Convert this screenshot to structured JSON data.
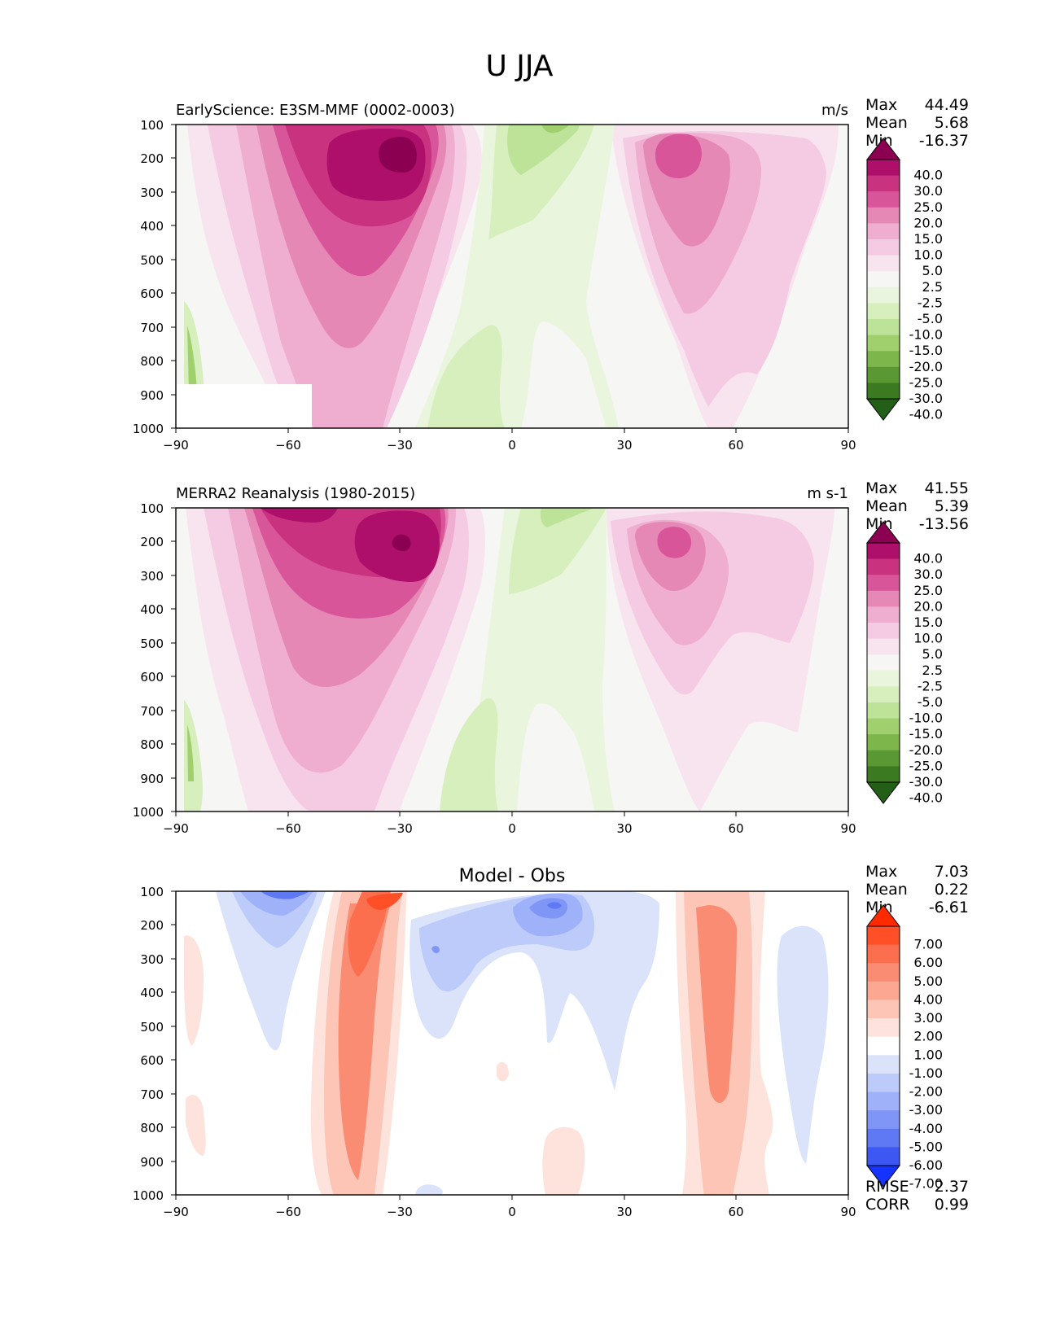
{
  "figure": {
    "title": "U JJA"
  },
  "chart_data": [
    {
      "type": "contour",
      "title": "EarlyScience: E3SM-MMF (0002-0003)",
      "units": "m/s",
      "xlabel": "",
      "ylabel": "",
      "xlim": [
        -90,
        90
      ],
      "ylim": [
        1000,
        100
      ],
      "y_inverted": true,
      "x_ticks": [
        "−90",
        "−60",
        "−30",
        "0",
        "30",
        "60",
        "90"
      ],
      "y_ticks": [
        "100",
        "200",
        "300",
        "400",
        "500",
        "600",
        "700",
        "800",
        "900",
        "1000"
      ],
      "stats": {
        "max_label": "Max",
        "max": "44.49",
        "mean_label": "Mean",
        "mean": "5.68",
        "min_label": "Min",
        "min": "-16.37"
      },
      "colorbar": {
        "levels": [
          "40.0",
          "30.0",
          "25.0",
          "20.0",
          "15.0",
          "10.0",
          "5.0",
          "2.5",
          "-2.5",
          "-5.0",
          "-10.0",
          "-15.0",
          "-20.0",
          "-25.0",
          "-30.0",
          "-40.0"
        ],
        "colors": [
          "#8c0051",
          "#ad0f6a",
          "#c9327f",
          "#d9559a",
          "#e688b5",
          "#efadd0",
          "#f5cbe3",
          "#f8e4ef",
          "#f6f6f4",
          "#e9f5dc",
          "#d6efbd",
          "#bde399",
          "#9fd06d",
          "#7db64b",
          "#5a9834",
          "#3c7a22",
          "#245f18"
        ]
      },
      "features": [
        {
          "name": "southern-hemisphere-westerly-jet",
          "peak_lat": -32,
          "peak_lev": 200,
          "peak_value": 44.49
        },
        {
          "name": "northern-hemisphere-westerly-jet",
          "peak_lat": 45,
          "peak_lev": 200,
          "peak_value": 28
        },
        {
          "name": "tropical-easterlies",
          "lat_range": [
            -5,
            15
          ],
          "lev_range": [
            100,
            450
          ],
          "value": -12
        }
      ]
    },
    {
      "type": "contour",
      "title": "MERRA2 Reanalysis (1980-2015)",
      "units": "m s-1",
      "xlabel": "",
      "ylabel": "",
      "xlim": [
        -90,
        90
      ],
      "ylim": [
        1000,
        100
      ],
      "y_inverted": true,
      "x_ticks": [
        "−90",
        "−60",
        "−30",
        "0",
        "30",
        "60",
        "90"
      ],
      "y_ticks": [
        "100",
        "200",
        "300",
        "400",
        "500",
        "600",
        "700",
        "800",
        "900",
        "1000"
      ],
      "stats": {
        "max_label": "Max",
        "max": "41.55",
        "mean_label": "Mean",
        "mean": "5.39",
        "min_label": "Min",
        "min": "-13.56"
      },
      "colorbar": {
        "levels": [
          "40.0",
          "30.0",
          "25.0",
          "20.0",
          "15.0",
          "10.0",
          "5.0",
          "2.5",
          "-2.5",
          "-5.0",
          "-10.0",
          "-15.0",
          "-20.0",
          "-25.0",
          "-30.0",
          "-40.0"
        ],
        "colors": [
          "#8c0051",
          "#ad0f6a",
          "#c9327f",
          "#d9559a",
          "#e688b5",
          "#efadd0",
          "#f5cbe3",
          "#f8e4ef",
          "#f6f6f4",
          "#e9f5dc",
          "#d6efbd",
          "#bde399",
          "#9fd06d",
          "#7db64b",
          "#5a9834",
          "#3c7a22",
          "#245f18"
        ]
      },
      "features": [
        {
          "name": "southern-hemisphere-westerly-jet",
          "peak_lat": -30,
          "peak_lev": 200,
          "peak_value": 41.55
        },
        {
          "name": "northern-hemisphere-westerly-jet",
          "peak_lat": 44,
          "peak_lev": 200,
          "peak_value": 25
        },
        {
          "name": "tropical-easterlies",
          "lat_range": [
            -3,
            12
          ],
          "lev_range": [
            100,
            400
          ],
          "value": -10
        }
      ]
    },
    {
      "type": "contour",
      "title": "Model - Obs",
      "units": "",
      "xlabel": "",
      "ylabel": "",
      "xlim": [
        -90,
        90
      ],
      "ylim": [
        1000,
        100
      ],
      "y_inverted": true,
      "x_ticks": [
        "−90",
        "−60",
        "−30",
        "0",
        "30",
        "60",
        "90"
      ],
      "y_ticks": [
        "100",
        "200",
        "300",
        "400",
        "500",
        "600",
        "700",
        "800",
        "900",
        "1000"
      ],
      "stats": {
        "max_label": "Max",
        "max": "7.03",
        "mean_label": "Mean",
        "mean": "0.22",
        "min_label": "Min",
        "min": "-6.61"
      },
      "metrics": {
        "rmse_label": "RMSE",
        "rmse": "2.37",
        "corr_label": "CORR",
        "corr": "0.99"
      },
      "colorbar": {
        "levels": [
          "7.00",
          "6.00",
          "5.00",
          "4.00",
          "3.00",
          "2.00",
          "1.00",
          "-1.00",
          "-2.00",
          "-3.00",
          "-4.00",
          "-5.00",
          "-6.00",
          "-7.00"
        ],
        "colors": [
          "#ff2a00",
          "#ff4f26",
          "#fb6e4e",
          "#f98c72",
          "#fba792",
          "#fcc5b6",
          "#fde3db",
          "#ffffff",
          "#dbe3fb",
          "#bdcbfa",
          "#9fb1f8",
          "#8096f6",
          "#5f78f4",
          "#3d57f2",
          "#1533ff"
        ]
      },
      "features": [
        {
          "name": "positive-band-sh",
          "lat": -38,
          "lev_range": [
            100,
            1000
          ],
          "peak_value": 7.03
        },
        {
          "name": "negative-band-sh",
          "lat": -60,
          "lev_range": [
            100,
            300
          ],
          "value": -6
        },
        {
          "name": "negative-tropics",
          "lat_range": [
            -25,
            30
          ],
          "lev_range": [
            100,
            400
          ],
          "value": -5
        },
        {
          "name": "positive-band-nh",
          "lat": 55,
          "lev_range": [
            100,
            1000
          ],
          "value": 4
        }
      ]
    }
  ]
}
